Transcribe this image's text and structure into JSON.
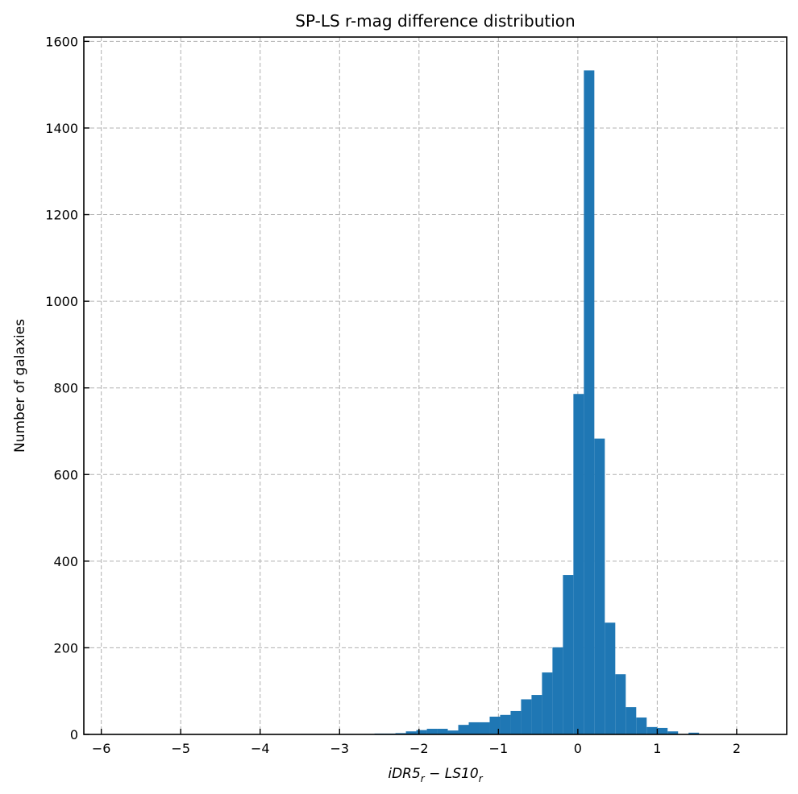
{
  "chart_data": {
    "type": "bar",
    "title": "SP-LS r-mag difference distribution",
    "xlabel": "iDR5_r − LS10_r",
    "xlabel_parts": {
      "a": "iDR5",
      "a_sub": "r",
      "op": " − ",
      "b": "LS10",
      "b_sub": "r"
    },
    "ylabel": "Number of galaxies",
    "xlim": [
      -6.22,
      2.63
    ],
    "ylim": [
      0,
      1610
    ],
    "grid": true,
    "bin_start": -5.855,
    "bin_width": 0.1318,
    "values": [
      1,
      0,
      1,
      0,
      0,
      0,
      0,
      0,
      0,
      0,
      0,
      0,
      0,
      0,
      0,
      0,
      0,
      0,
      1,
      1,
      0,
      0,
      1,
      0,
      1,
      2,
      2,
      3,
      7,
      10,
      13,
      13,
      9,
      22,
      28,
      28,
      41,
      45,
      54,
      81,
      91,
      143,
      201,
      368,
      786,
      1533,
      683,
      258,
      139,
      63,
      39,
      17,
      15,
      7,
      1,
      4,
      1,
      0,
      0,
      1
    ],
    "bar_color": "#1f77b4",
    "xticks": [
      -6,
      -5,
      -4,
      -3,
      -2,
      -1,
      0,
      1,
      2
    ],
    "xtick_labels": [
      "−6",
      "−5",
      "−4",
      "−3",
      "−2",
      "−1",
      "0",
      "1",
      "2"
    ],
    "yticks": [
      0,
      200,
      400,
      600,
      800,
      1000,
      1200,
      1400,
      1600
    ],
    "ytick_labels": [
      "0",
      "200",
      "400",
      "600",
      "800",
      "1000",
      "1200",
      "1400",
      "1600"
    ]
  }
}
